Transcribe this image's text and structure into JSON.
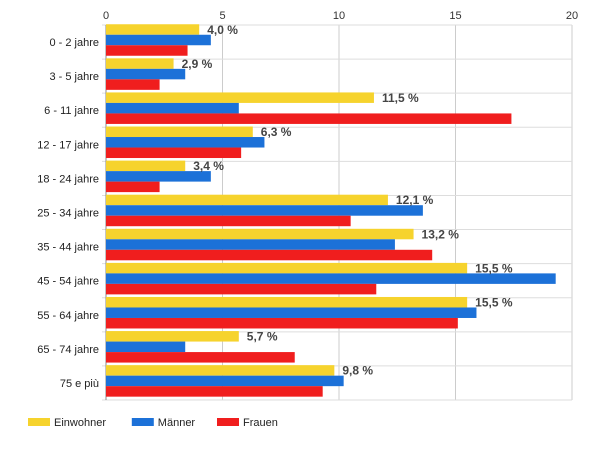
{
  "chart_data": {
    "type": "bar",
    "orientation": "horizontal",
    "categories": [
      "0 - 2 jahre",
      "3 - 5 jahre",
      "6 - 11 jahre",
      "12 - 17 jahre",
      "18 - 24 jahre",
      "25 - 34 jahre",
      "35 - 44 jahre",
      "45 - 54 jahre",
      "55 - 64 jahre",
      "65 - 74 jahre",
      "75 e più"
    ],
    "series": [
      {
        "name": "Einwohner",
        "color": "#f6d32d",
        "values": [
          4.0,
          2.9,
          11.5,
          6.3,
          3.4,
          12.1,
          13.2,
          15.5,
          15.5,
          5.7,
          9.8
        ]
      },
      {
        "name": "Männer",
        "color": "#1c71d8",
        "values": [
          4.5,
          3.4,
          5.7,
          6.8,
          4.5,
          13.6,
          12.4,
          19.3,
          15.9,
          3.4,
          10.2
        ]
      },
      {
        "name": "Frauen",
        "color": "#f01e1e",
        "values": [
          3.5,
          2.3,
          17.4,
          5.8,
          2.3,
          10.5,
          14.0,
          11.6,
          15.1,
          8.1,
          9.3
        ]
      }
    ],
    "data_labels": [
      "4,0 %",
      "2,9 %",
      "11,5 %",
      "6,3 %",
      "3,4 %",
      "12,1 %",
      "13,2 %",
      "15,5 %",
      "15,5 %",
      "5,7 %",
      "9,8 %"
    ],
    "x_ticks": [
      0,
      5,
      10,
      15,
      20
    ],
    "xlim": [
      0,
      20
    ],
    "axis_position": "top",
    "grid": true,
    "legend_position": "bottom-left",
    "title": "",
    "xlabel": "",
    "ylabel": ""
  }
}
